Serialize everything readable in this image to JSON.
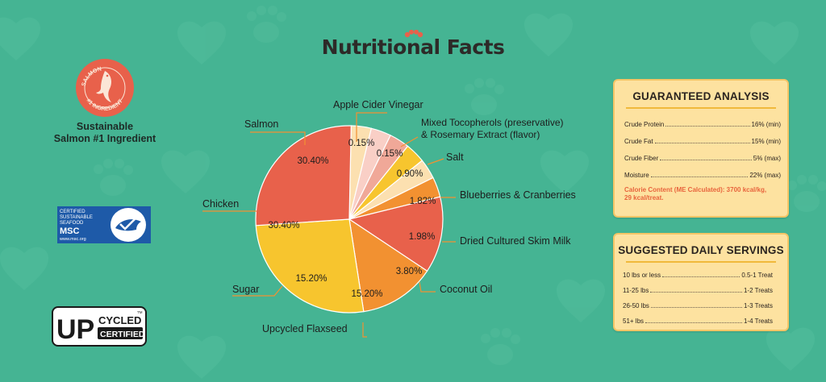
{
  "page_title": "Nutritional Facts",
  "badges": {
    "salmon_seal": {
      "ring_top": "SALMON",
      "ring_bottom": "#1 INGREDIENT"
    },
    "sustainable_line1": "Sustainable",
    "sustainable_line2": "Salmon #1 Ingredient",
    "msc": {
      "line1": "CERTIFIED",
      "line2": "SUSTAINABLE",
      "line3": "SEAFOOD",
      "line4": "MSC",
      "line5": "www.msc.org"
    },
    "upcycled": {
      "up": "UP",
      "cycled": "CYCLED",
      "certified": "CERTIFIED",
      "tm": "TM"
    }
  },
  "colors": {
    "background": "#45b493",
    "salmon": "#e8614b",
    "chicken": "#f7c52e",
    "sugar": "#f29131",
    "flaxseed": "#e8614b",
    "coconut": "#f29131",
    "skim_milk": "#fce0b0",
    "blueberries": "#f7c52e",
    "salt": "#f0a898",
    "tocopherols": "#f9cfc6",
    "vinegar": "#fce0b0",
    "card_bg": "#fde2a0",
    "accent_orange": "#e8643c"
  },
  "chart_data": {
    "type": "pie",
    "title": "Nutritional Facts",
    "slices": [
      {
        "label": "Salmon",
        "value": 30.4,
        "display": "30.40%",
        "color": "#e8614b"
      },
      {
        "label": "Chicken",
        "value": 30.4,
        "display": "30.40%",
        "color": "#f7c52e"
      },
      {
        "label": "Sugar",
        "value": 15.2,
        "display": "15.20%",
        "color": "#f29131"
      },
      {
        "label": "Upcycled Flaxseed",
        "value": 15.2,
        "display": "15.20%",
        "color": "#e8614b"
      },
      {
        "label": "Coconut Oil",
        "value": 3.8,
        "display": "3.80%",
        "color": "#f29131"
      },
      {
        "label": "Dried Cultured Skim Milk",
        "value": 1.98,
        "display": "1.98%",
        "color": "#fce0b0"
      },
      {
        "label": "Blueberries & Cranberries",
        "value": 1.82,
        "display": "1.82%",
        "color": "#f7c52e"
      },
      {
        "label": "Salt",
        "value": 0.9,
        "display": "0.90%",
        "color": "#f0a898"
      },
      {
        "label": "Mixed Tocopherols (preservative) & Rosemary Extract (flavor)",
        "value": 0.15,
        "display": "0.15%",
        "color": "#f9cfc6"
      },
      {
        "label": "Apple Cider Vinegar",
        "value": 0.15,
        "display": "0.15%",
        "color": "#fce0b0"
      }
    ]
  },
  "labels": {
    "salmon": "Salmon",
    "chicken": "Chicken",
    "sugar": "Sugar",
    "flaxseed": "Upcycled Flaxseed",
    "coconut": "Coconut Oil",
    "skim_milk": "Dried Cultured Skim Milk",
    "blueberries": "Blueberries & Cranberries",
    "salt": "Salt",
    "tocopherols_line1": "Mixed Tocopherols (preservative)",
    "tocopherols_line2": "& Rosemary Extract (flavor)",
    "vinegar": "Apple Cider Vinegar"
  },
  "guaranteed_analysis": {
    "title": "GUARANTEED ANALYSIS",
    "rows": [
      {
        "name": "Crude Protein",
        "value": "16% (min)"
      },
      {
        "name": "Crude Fat",
        "value": "15% (min)"
      },
      {
        "name": "Crude Fiber",
        "value": "5% (max)"
      },
      {
        "name": "Moisture",
        "value": "22% (max)"
      }
    ],
    "calorie_line1": "Calorie Content (ME Calculated): 3700 kcal/kg,",
    "calorie_line2": "29 kcal/treat."
  },
  "servings": {
    "title": "SUGGESTED DAILY SERVINGS",
    "rows": [
      {
        "name": "10 lbs or less",
        "value": "0.5-1 Treat"
      },
      {
        "name": "11-25 lbs",
        "value": "1-2 Treats"
      },
      {
        "name": "26-50 lbs",
        "value": "1-3 Treats"
      },
      {
        "name": "51+ lbs",
        "value": "1-4 Treats"
      }
    ]
  }
}
